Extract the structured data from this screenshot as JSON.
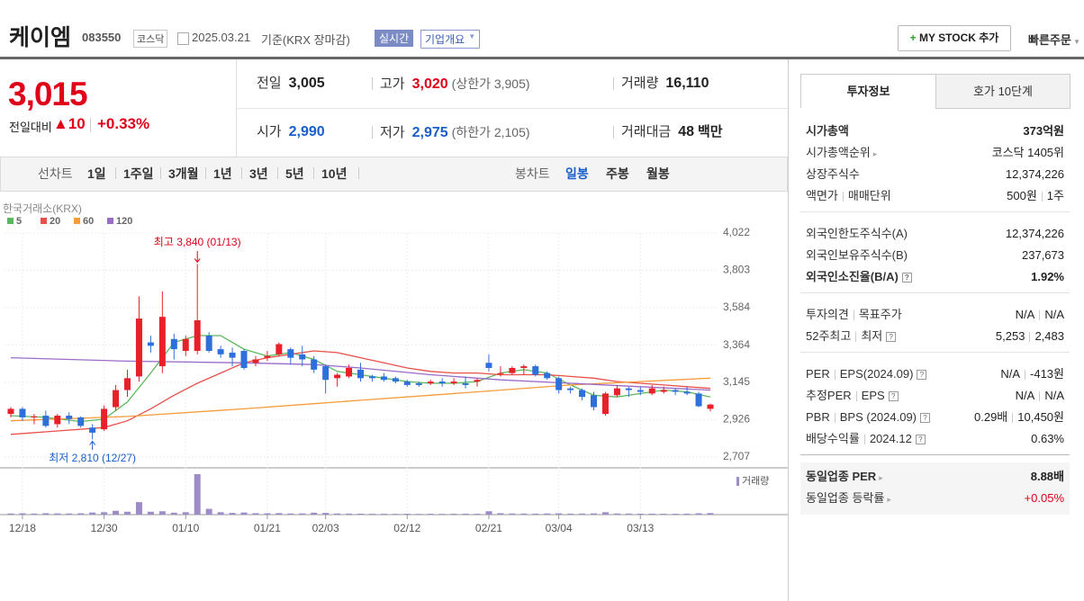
{
  "header": {
    "name": "케이엠",
    "code": "083550",
    "market": "코스닥",
    "date": "2025.03.21",
    "basis": "기준(KRX 장마감)",
    "realtime": "실시간",
    "company_info": "기업개요",
    "my_stock": "MY STOCK 추가",
    "quick_order": "빠른주문"
  },
  "price": {
    "current": "3,015",
    "change_label": "전일대비",
    "change": "10",
    "change_rate": "+0.33%"
  },
  "summary": [
    {
      "label": "전일",
      "value": "3,005",
      "color": "#222222"
    },
    {
      "label": "고가",
      "value": "3,020",
      "note": "(상한가 3,905)",
      "color": "#e0001a"
    },
    {
      "label": "거래량",
      "value": "16,110",
      "color": "#222222"
    },
    {
      "label": "시가",
      "value": "2,990",
      "color": "#1a5fc9"
    },
    {
      "label": "저가",
      "value": "2,975",
      "note": "(하한가 2,105)",
      "color": "#1a5fc9"
    },
    {
      "label": "거래대금",
      "value": "48",
      "note": "백만",
      "color": "#222222"
    }
  ],
  "chart_tabs": {
    "line_label": "선차트",
    "periods": [
      "1일",
      "1주일",
      "3개월",
      "1년",
      "3년",
      "5년",
      "10년"
    ],
    "candle_label": "봉차트",
    "candle_periods": [
      "일봉",
      "주봉",
      "월봉"
    ]
  },
  "chart_data": {
    "type": "candlestick",
    "source": "한국거래소(KRX)",
    "volume_label": "거래량",
    "max_label": "최고 3,840 (01/13)",
    "min_label": "최저 2,810 (12/27)",
    "up_color": "#e8202a",
    "down_color": "#2d6fdb",
    "volume_color": "#9e8cc9",
    "categories": [
      null,
      "12/18",
      null,
      null,
      null,
      null,
      null,
      null,
      "12/30",
      null,
      null,
      null,
      null,
      null,
      null,
      "01/10",
      null,
      null,
      null,
      null,
      null,
      null,
      "01/21",
      null,
      null,
      null,
      null,
      "02/03",
      null,
      null,
      null,
      null,
      null,
      null,
      "02/12",
      null,
      null,
      null,
      null,
      null,
      null,
      "02/21",
      null,
      null,
      null,
      null,
      null,
      "03/04",
      null,
      null,
      null,
      null,
      null,
      null,
      "03/13",
      null,
      null,
      null,
      null,
      null,
      null
    ],
    "open": [
      2960,
      2990,
      2940,
      2950,
      2900,
      2950,
      2940,
      2880,
      2870,
      3000,
      3100,
      3180,
      3380,
      3240,
      3400,
      3330,
      3330,
      3420,
      3340,
      3320,
      3330,
      3260,
      3290,
      3310,
      3340,
      3310,
      3280,
      3240,
      3170,
      3180,
      3220,
      3180,
      3180,
      3170,
      3150,
      3140,
      3140,
      3150,
      3140,
      3140,
      3150,
      3260,
      3200,
      3200,
      3230,
      3240,
      3200,
      3170,
      3110,
      3100,
      3070,
      2960,
      3070,
      3110,
      3100,
      3080,
      3090,
      3100,
      3090,
      3080,
      2990
    ],
    "high": [
      3000,
      3000,
      2960,
      2980,
      2960,
      2970,
      2945,
      2900,
      3010,
      3130,
      3220,
      3650,
      3420,
      3680,
      3430,
      3420,
      3840,
      3440,
      3360,
      3350,
      3340,
      3300,
      3330,
      3380,
      3350,
      3360,
      3300,
      3250,
      3200,
      3250,
      3260,
      3190,
      3200,
      3180,
      3160,
      3150,
      3160,
      3170,
      3170,
      3180,
      3170,
      3310,
      3240,
      3240,
      3250,
      3250,
      3210,
      3180,
      3120,
      3110,
      3090,
      3090,
      3130,
      3120,
      3120,
      3130,
      3120,
      3110,
      3120,
      3090,
      3020
    ],
    "low": [
      2940,
      2920,
      2900,
      2880,
      2880,
      2900,
      2880,
      2810,
      2860,
      2980,
      3060,
      3150,
      3320,
      3200,
      3280,
      3300,
      3310,
      3320,
      3290,
      3240,
      3220,
      3240,
      3270,
      3300,
      3250,
      3240,
      3200,
      3080,
      3120,
      3170,
      3150,
      3150,
      3150,
      3140,
      3120,
      3120,
      3130,
      3120,
      3130,
      3110,
      3120,
      3210,
      3180,
      3190,
      3190,
      3180,
      3160,
      3080,
      3080,
      3040,
      2980,
      2950,
      3060,
      3060,
      3070,
      3070,
      3080,
      3070,
      3070,
      3000,
      2975
    ],
    "close": [
      2990,
      2940,
      2945,
      2890,
      2950,
      2930,
      2890,
      2850,
      2990,
      3100,
      3170,
      3520,
      3360,
      3530,
      3340,
      3400,
      3510,
      3330,
      3310,
      3290,
      3230,
      3280,
      3300,
      3370,
      3290,
      3280,
      3220,
      3160,
      3190,
      3230,
      3170,
      3170,
      3160,
      3150,
      3130,
      3130,
      3150,
      3140,
      3150,
      3130,
      3160,
      3230,
      3200,
      3230,
      3240,
      3190,
      3170,
      3100,
      3100,
      3060,
      3000,
      3080,
      3110,
      3100,
      3090,
      3110,
      3100,
      3090,
      3080,
      3005,
      3015
    ],
    "volume": [
      12000,
      14000,
      11000,
      15000,
      13000,
      12000,
      14000,
      22000,
      25000,
      40000,
      30000,
      130000,
      30000,
      35000,
      20000,
      25000,
      420000,
      60000,
      25000,
      18000,
      22000,
      15000,
      14000,
      16000,
      12000,
      13000,
      20000,
      18000,
      12000,
      11000,
      10000,
      9000,
      9000,
      8000,
      9000,
      8000,
      9000,
      8000,
      9000,
      10000,
      9000,
      35000,
      15000,
      12000,
      11000,
      10000,
      12000,
      14000,
      10000,
      11000,
      13000,
      25000,
      12000,
      11000,
      10000,
      10000,
      9000,
      9000,
      10000,
      14000,
      16110
    ],
    "series": [
      {
        "name": "5",
        "color": "#5cb85c",
        "x": [
          0,
          3,
          6,
          8,
          10,
          12,
          14,
          16,
          18,
          20,
          22,
          24,
          26,
          28,
          30,
          32,
          34,
          36,
          38,
          40,
          42,
          44,
          46,
          48,
          50,
          52,
          54,
          56,
          58,
          60
        ],
        "values": [
          2950,
          2940,
          2915,
          2930,
          3030,
          3200,
          3380,
          3420,
          3420,
          3340,
          3300,
          3320,
          3280,
          3210,
          3190,
          3170,
          3150,
          3140,
          3140,
          3150,
          3200,
          3220,
          3200,
          3130,
          3070,
          3060,
          3080,
          3100,
          3090,
          3060
        ]
      },
      {
        "name": "20",
        "color": "#e8504a",
        "x": [
          0,
          4,
          8,
          10,
          12,
          14,
          16,
          18,
          20,
          22,
          24,
          26,
          28,
          30,
          32,
          34,
          36,
          38,
          40,
          42,
          44,
          46,
          48,
          50,
          52,
          54,
          56,
          58,
          60
        ],
        "values": [
          2840,
          2860,
          2880,
          2920,
          2990,
          3070,
          3140,
          3200,
          3260,
          3290,
          3310,
          3330,
          3320,
          3290,
          3260,
          3230,
          3210,
          3200,
          3200,
          3190,
          3190,
          3190,
          3180,
          3170,
          3150,
          3140,
          3130,
          3120,
          3110
        ]
      },
      {
        "name": "60",
        "color": "#f79b3b",
        "x": [
          0,
          10,
          20,
          26,
          30,
          36,
          42,
          48,
          54,
          60
        ],
        "values": [
          2920,
          2945,
          2990,
          3020,
          3040,
          3070,
          3100,
          3130,
          3150,
          3170
        ]
      },
      {
        "name": "120",
        "color": "#9b6bc8",
        "x": [
          0,
          10,
          20,
          26,
          30,
          36,
          42,
          48,
          54,
          60
        ],
        "values": [
          3290,
          3270,
          3260,
          3250,
          3230,
          3190,
          3160,
          3140,
          3120,
          3100
        ]
      }
    ],
    "ylim": [
      2707,
      4022
    ],
    "yticks": [
      {
        "value": 2707,
        "label": "2,707"
      },
      {
        "value": 2926,
        "label": "2,926"
      },
      {
        "value": 3145,
        "label": "3,145"
      },
      {
        "value": 3364,
        "label": "3,364"
      },
      {
        "value": 3584,
        "label": "3,584"
      },
      {
        "value": 3803,
        "label": "3,803"
      },
      {
        "value": 4022,
        "label": "4,022"
      }
    ],
    "grid": true
  },
  "side": {
    "tabs": [
      "투자정보",
      "호가 10단계"
    ],
    "groups": [
      [
        {
          "label": [
            "시가총액"
          ],
          "value": [
            "373억원"
          ],
          "bold": true
        },
        {
          "label": [
            "시가총액순위"
          ],
          "value": [
            "코스닥 1405위"
          ],
          "link": true
        },
        {
          "label": [
            "상장주식수"
          ],
          "value": [
            "12,374,226"
          ]
        },
        {
          "label": [
            "액면가",
            "매매단위"
          ],
          "value": [
            "500원",
            "1주"
          ]
        }
      ],
      [
        {
          "label": [
            "외국인한도주식수(A)"
          ],
          "value": [
            "12,374,226"
          ]
        },
        {
          "label": [
            "외국인보유주식수(B)"
          ],
          "value": [
            "237,673"
          ]
        },
        {
          "label": [
            "외국인소진율(B/A)"
          ],
          "value": [
            "1.92%"
          ],
          "bold": true,
          "help": true
        }
      ],
      [
        {
          "label": [
            "투자의견",
            "목표주가"
          ],
          "value": [
            "N/A",
            "N/A"
          ]
        },
        {
          "label": [
            "52주최고",
            "최저"
          ],
          "value": [
            "5,253",
            "2,483"
          ],
          "help": true
        }
      ],
      [
        {
          "label": [
            "PER",
            "EPS(2024.09)"
          ],
          "value": [
            "N/A",
            "-413원"
          ],
          "help": true
        },
        {
          "label": [
            "추정PER",
            "EPS"
          ],
          "value": [
            "N/A",
            "N/A"
          ],
          "help": true
        },
        {
          "label": [
            "PBR",
            "BPS (2024.09)"
          ],
          "value": [
            "0.29배",
            "10,450원"
          ],
          "help": true
        },
        {
          "label": [
            "배당수익률",
            "2024.12"
          ],
          "value": [
            "0.63%"
          ],
          "help": true
        }
      ],
      [
        {
          "label": [
            "동일업종 PER"
          ],
          "value": [
            "8.88배"
          ],
          "bold": true,
          "link": true
        },
        {
          "label": [
            "동일업종 등락률"
          ],
          "value": [
            "+0.05%"
          ],
          "link": true,
          "color": "#e0001a"
        }
      ]
    ]
  }
}
